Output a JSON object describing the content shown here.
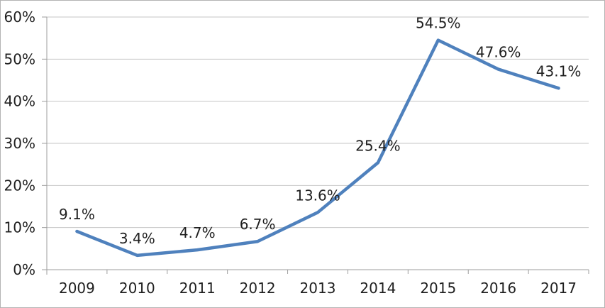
{
  "chart_data": {
    "type": "line",
    "title": "",
    "xlabel": "",
    "ylabel": "",
    "categories": [
      "2009",
      "2010",
      "2011",
      "2012",
      "2013",
      "2014",
      "2015",
      "2016",
      "2017"
    ],
    "series": [
      {
        "name": "",
        "values": [
          9.1,
          3.4,
          4.7,
          6.7,
          13.6,
          25.4,
          54.5,
          47.6,
          43.1
        ],
        "point_labels": [
          "9.1%",
          "3.4%",
          "4.7%",
          "6.7%",
          "13.6%",
          "25.4%",
          "54.5%",
          "47.6%",
          "43.1%"
        ],
        "color": "#4f81bd"
      }
    ],
    "ylim": [
      0,
      60
    ],
    "ytick_step": 10,
    "ytick_labels": [
      "0%",
      "10%",
      "20%",
      "30%",
      "40%",
      "50%",
      "60%"
    ],
    "grid": "horizontal",
    "legend": "none",
    "data_labels_position": "above",
    "colors": {
      "line": "#4f81bd",
      "gridline": "#c6c6c6",
      "axis": "#9d9d9d",
      "text": "#1f1f1f",
      "frame_border": "#b3b3b3",
      "background": "#ffffff"
    }
  }
}
